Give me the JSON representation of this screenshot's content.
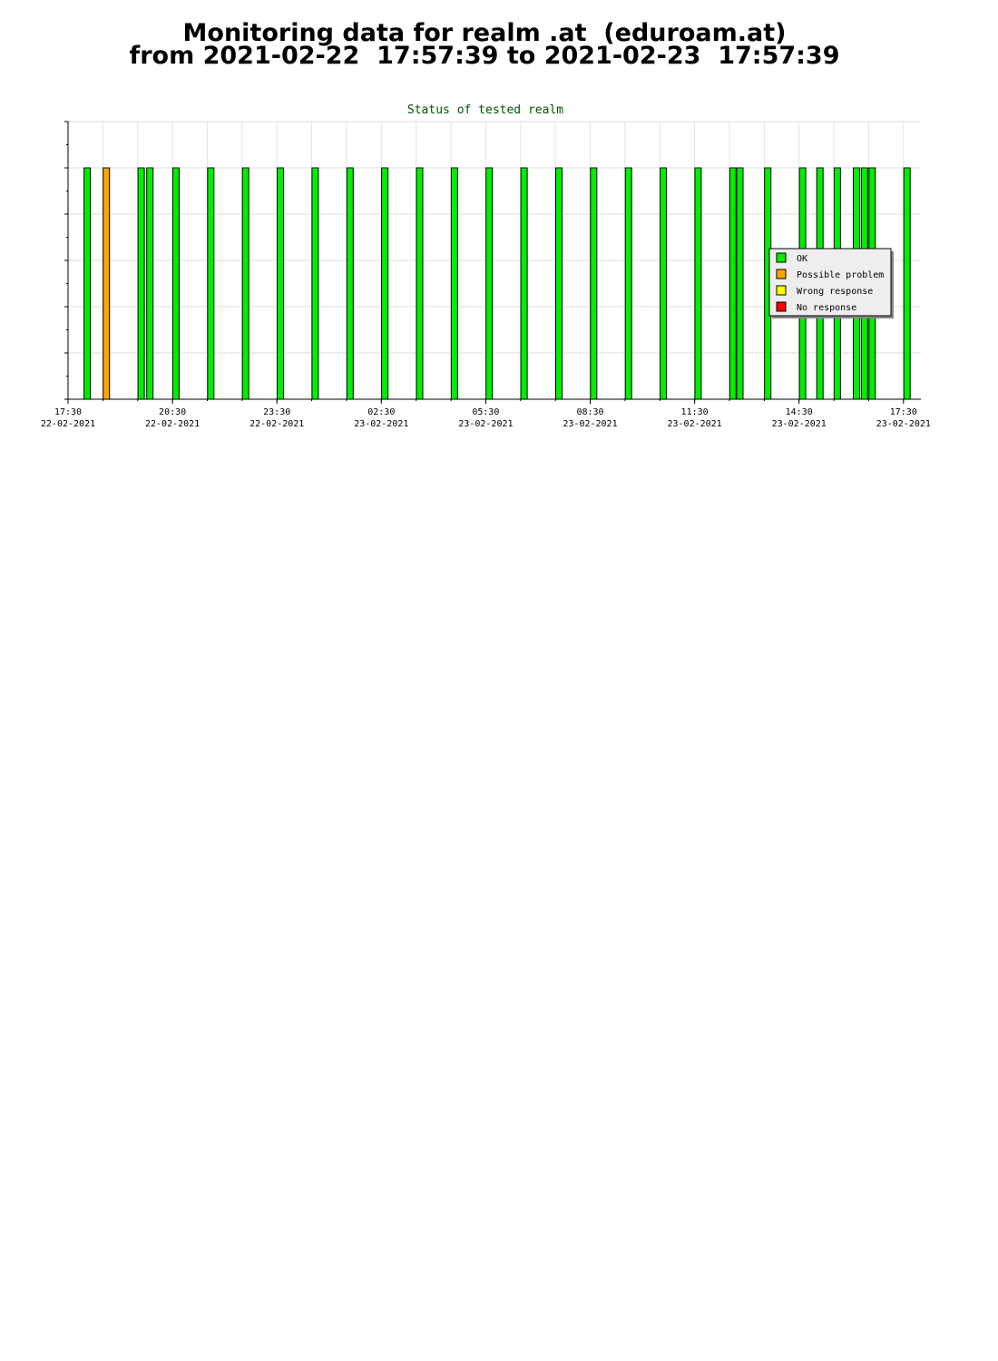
{
  "page": {
    "title_line1": "Monitoring data for realm .at  (eduroam.at)",
    "title_line2": "from 2021-02-22  17:57:39 to 2021-02-23  17:57:39"
  },
  "chart_data": {
    "type": "bar",
    "title": "Status of tested realm",
    "xlabel": "",
    "ylabel": "",
    "grid": true,
    "legend_position": "right",
    "x_ticks": [
      {
        "time": "17:30",
        "date": "22-02-2021",
        "hours": 0
      },
      {
        "time": "20:30",
        "date": "22-02-2021",
        "hours": 3
      },
      {
        "time": "23:30",
        "date": "22-02-2021",
        "hours": 6
      },
      {
        "time": "02:30",
        "date": "23-02-2021",
        "hours": 9
      },
      {
        "time": "05:30",
        "date": "23-02-2021",
        "hours": 12
      },
      {
        "time": "08:30",
        "date": "23-02-2021",
        "hours": 15
      },
      {
        "time": "11:30",
        "date": "23-02-2021",
        "hours": 18
      },
      {
        "time": "14:30",
        "date": "23-02-2021",
        "hours": 21
      },
      {
        "time": "17:30",
        "date": "23-02-2021",
        "hours": 24
      }
    ],
    "x_range_hours": [
      0,
      24.5
    ],
    "ylim": [
      0,
      6
    ],
    "legend": [
      {
        "key": "ok",
        "label": "OK",
        "color": "#00ee00"
      },
      {
        "key": "possible",
        "label": "Possible problem",
        "color": "#ffa500"
      },
      {
        "key": "wrong",
        "label": "Wrong response",
        "color": "#ffff00"
      },
      {
        "key": "none",
        "label": "No response",
        "color": "#ff0000"
      }
    ],
    "bars": [
      {
        "hours": 0.55,
        "value": 5,
        "status": "ok"
      },
      {
        "hours": 1.1,
        "value": 5,
        "status": "possible"
      },
      {
        "hours": 2.1,
        "value": 5,
        "status": "ok"
      },
      {
        "hours": 2.35,
        "value": 5,
        "status": "ok"
      },
      {
        "hours": 3.1,
        "value": 5,
        "status": "ok"
      },
      {
        "hours": 4.1,
        "value": 5,
        "status": "ok"
      },
      {
        "hours": 5.1,
        "value": 5,
        "status": "ok"
      },
      {
        "hours": 6.1,
        "value": 5,
        "status": "ok"
      },
      {
        "hours": 7.1,
        "value": 5,
        "status": "ok"
      },
      {
        "hours": 8.1,
        "value": 5,
        "status": "ok"
      },
      {
        "hours": 9.1,
        "value": 5,
        "status": "ok"
      },
      {
        "hours": 10.1,
        "value": 5,
        "status": "ok"
      },
      {
        "hours": 11.1,
        "value": 5,
        "status": "ok"
      },
      {
        "hours": 12.1,
        "value": 5,
        "status": "ok"
      },
      {
        "hours": 13.1,
        "value": 5,
        "status": "ok"
      },
      {
        "hours": 14.1,
        "value": 5,
        "status": "ok"
      },
      {
        "hours": 15.1,
        "value": 5,
        "status": "ok"
      },
      {
        "hours": 16.1,
        "value": 5,
        "status": "ok"
      },
      {
        "hours": 17.1,
        "value": 5,
        "status": "ok"
      },
      {
        "hours": 18.1,
        "value": 5,
        "status": "ok"
      },
      {
        "hours": 19.1,
        "value": 5,
        "status": "ok"
      },
      {
        "hours": 19.3,
        "value": 5,
        "status": "ok"
      },
      {
        "hours": 20.1,
        "value": 5,
        "status": "ok"
      },
      {
        "hours": 21.1,
        "value": 5,
        "status": "ok"
      },
      {
        "hours": 21.6,
        "value": 5,
        "status": "ok"
      },
      {
        "hours": 22.1,
        "value": 5,
        "status": "ok"
      },
      {
        "hours": 22.65,
        "value": 5,
        "status": "ok"
      },
      {
        "hours": 22.88,
        "value": 5,
        "status": "ok"
      },
      {
        "hours": 23.1,
        "value": 5,
        "status": "ok"
      },
      {
        "hours": 24.1,
        "value": 5,
        "status": "ok"
      }
    ]
  }
}
